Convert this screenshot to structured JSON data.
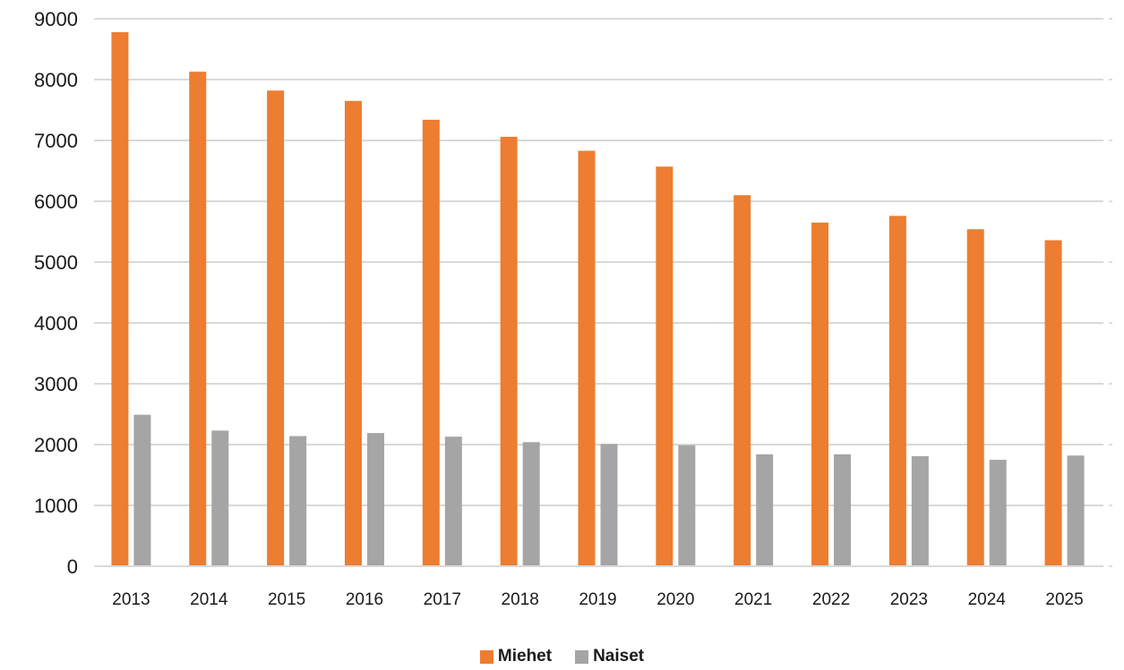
{
  "chart_data": {
    "type": "bar",
    "categories": [
      "2013",
      "2014",
      "2015",
      "2016",
      "2017",
      "2018",
      "2019",
      "2020",
      "2021",
      "2022",
      "2023",
      "2024",
      "2025"
    ],
    "series": [
      {
        "name": "Miehet",
        "color": "#ed7d31",
        "values": [
          8780,
          8130,
          7820,
          7650,
          7340,
          7060,
          6830,
          6570,
          6100,
          5650,
          5760,
          5540,
          5360
        ]
      },
      {
        "name": "Naiset",
        "color": "#a5a5a5",
        "values": [
          2490,
          2230,
          2140,
          2190,
          2130,
          2040,
          2010,
          1990,
          1840,
          1840,
          1810,
          1750,
          1820
        ]
      }
    ],
    "ylim": [
      0,
      9000
    ],
    "yticks": [
      "0",
      "1000",
      "2000",
      "3000",
      "4000",
      "5000",
      "6000",
      "7000",
      "8000",
      "9000"
    ],
    "grid": true,
    "legend_position": "bottom-center"
  }
}
